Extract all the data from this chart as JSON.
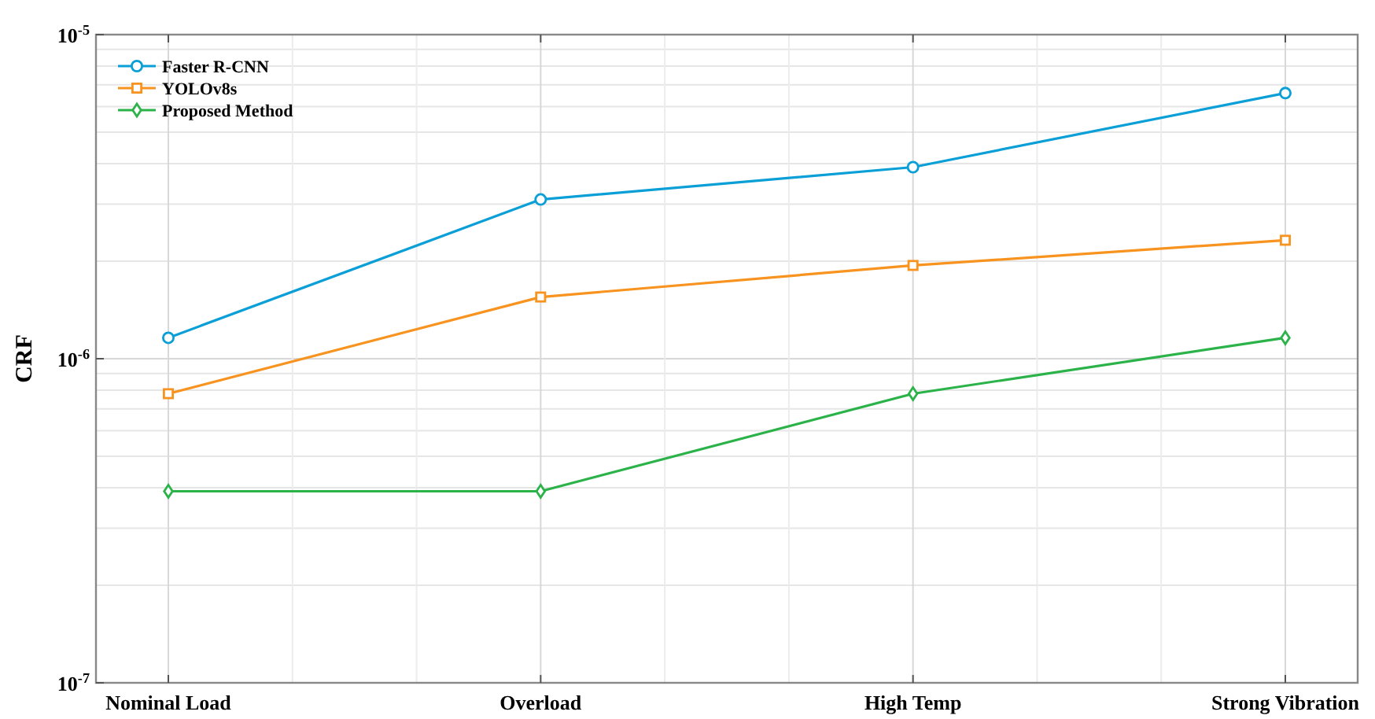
{
  "chart_data": {
    "type": "line",
    "ylabel": "CRF",
    "categories": [
      "Nominal Load",
      "Overload",
      "High Temp",
      "Strong Vibration"
    ],
    "series": [
      {
        "name": "Faster R-CNN",
        "color": "#0a9fd6",
        "marker": "circle",
        "values": [
          1.16e-06,
          3.1e-06,
          3.9e-06,
          6.6e-06
        ]
      },
      {
        "name": "YOLOv8s",
        "color": "#f7931e",
        "marker": "square",
        "values": [
          7.8e-07,
          1.55e-06,
          1.94e-06,
          2.32e-06
        ]
      },
      {
        "name": "Proposed Method",
        "color": "#2bb34a",
        "marker": "diamond",
        "values": [
          3.9e-07,
          3.9e-07,
          7.8e-07,
          1.16e-06
        ]
      }
    ],
    "log": true,
    "ylim": [
      1e-07,
      1e-05
    ],
    "yticks": [
      {
        "value": 1e-07,
        "label": "10$^{-7}$"
      },
      {
        "value": 1e-06,
        "label": "10$^{-6}$"
      },
      {
        "value": 1e-05,
        "label": "10$^{-5}$"
      }
    ],
    "grid": true,
    "legend": "top left"
  }
}
